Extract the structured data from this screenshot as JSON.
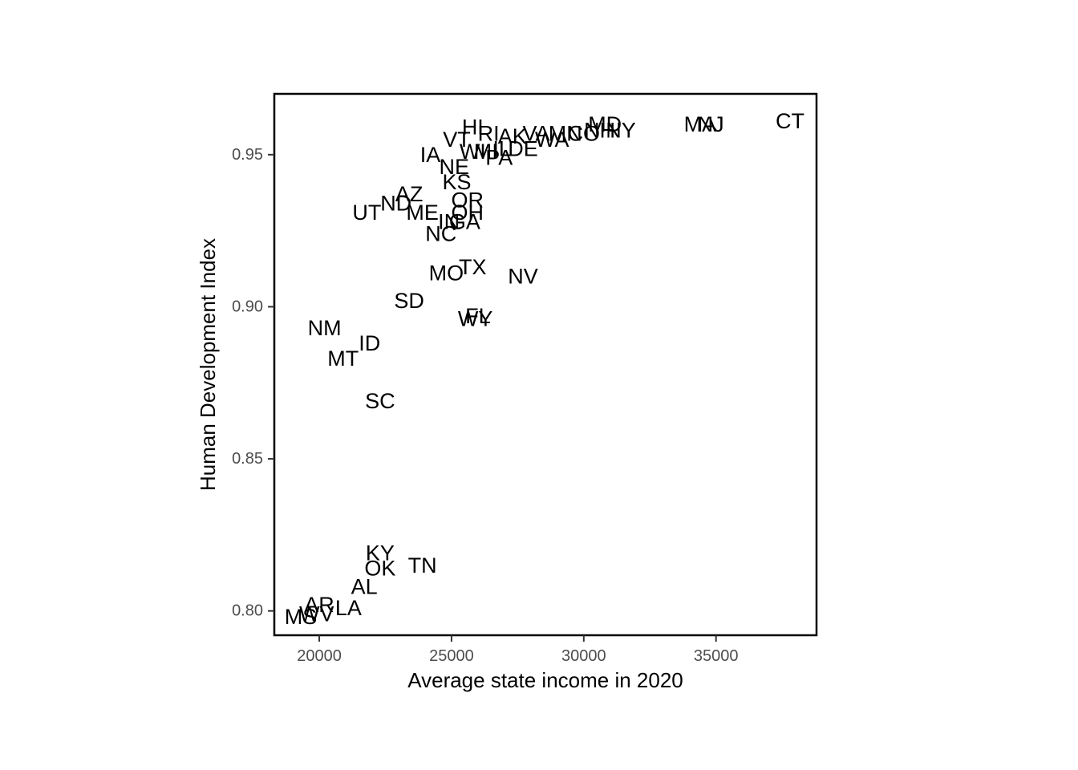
{
  "chart_data": {
    "type": "scatter",
    "title": "",
    "xlabel": "Average state income in 2020",
    "ylabel": "Human Development Index",
    "xlim": [
      18300,
      38800
    ],
    "ylim": [
      0.792,
      0.97
    ],
    "xticks": [
      20000,
      25000,
      30000,
      35000
    ],
    "xtick_labels": [
      "20000",
      "25000",
      "30000",
      "35000"
    ],
    "yticks": [
      0.8,
      0.85,
      0.9,
      0.95
    ],
    "ytick_labels": [
      "0.80",
      "0.85",
      "0.90",
      "0.95"
    ],
    "grid": false,
    "points": [
      {
        "label": "CT",
        "x": 37800,
        "y": 0.961
      },
      {
        "label": "MA",
        "x": 34400,
        "y": 0.96
      },
      {
        "label": "NJ",
        "x": 34800,
        "y": 0.96
      },
      {
        "label": "MD",
        "x": 30800,
        "y": 0.96
      },
      {
        "label": "NY",
        "x": 31400,
        "y": 0.958
      },
      {
        "label": "NH",
        "x": 30600,
        "y": 0.958
      },
      {
        "label": "CO",
        "x": 30000,
        "y": 0.957
      },
      {
        "label": "MN",
        "x": 29300,
        "y": 0.957
      },
      {
        "label": "VA",
        "x": 28200,
        "y": 0.957
      },
      {
        "label": "WA",
        "x": 28800,
        "y": 0.955
      },
      {
        "label": "AK",
        "x": 27300,
        "y": 0.956
      },
      {
        "label": "DE",
        "x": 27700,
        "y": 0.952
      },
      {
        "label": "IL",
        "x": 26900,
        "y": 0.952
      },
      {
        "label": "PA",
        "x": 26800,
        "y": 0.949
      },
      {
        "label": "HI",
        "x": 25800,
        "y": 0.959
      },
      {
        "label": "RI",
        "x": 26400,
        "y": 0.957
      },
      {
        "label": "VT",
        "x": 25200,
        "y": 0.955
      },
      {
        "label": "WI",
        "x": 25800,
        "y": 0.951
      },
      {
        "label": "MI",
        "x": 26300,
        "y": 0.951
      },
      {
        "label": "IA",
        "x": 24200,
        "y": 0.95
      },
      {
        "label": "NE",
        "x": 25100,
        "y": 0.946
      },
      {
        "label": "KS",
        "x": 25200,
        "y": 0.941
      },
      {
        "label": "AZ",
        "x": 23400,
        "y": 0.937
      },
      {
        "label": "ND",
        "x": 22900,
        "y": 0.934
      },
      {
        "label": "OR",
        "x": 25600,
        "y": 0.935
      },
      {
        "label": "OH",
        "x": 25600,
        "y": 0.931
      },
      {
        "label": "UT",
        "x": 21800,
        "y": 0.931
      },
      {
        "label": "ME",
        "x": 23900,
        "y": 0.931
      },
      {
        "label": "IN",
        "x": 24900,
        "y": 0.928
      },
      {
        "label": "GA",
        "x": 25500,
        "y": 0.928
      },
      {
        "label": "NC",
        "x": 24600,
        "y": 0.924
      },
      {
        "label": "TX",
        "x": 25800,
        "y": 0.913
      },
      {
        "label": "MO",
        "x": 24800,
        "y": 0.911
      },
      {
        "label": "NV",
        "x": 27700,
        "y": 0.91
      },
      {
        "label": "SD",
        "x": 23400,
        "y": 0.902
      },
      {
        "label": "FL",
        "x": 26000,
        "y": 0.897
      },
      {
        "label": "WY",
        "x": 25900,
        "y": 0.896
      },
      {
        "label": "NM",
        "x": 20200,
        "y": 0.893
      },
      {
        "label": "ID",
        "x": 21900,
        "y": 0.888
      },
      {
        "label": "MT",
        "x": 20900,
        "y": 0.883
      },
      {
        "label": "SC",
        "x": 22300,
        "y": 0.869
      },
      {
        "label": "KY",
        "x": 22300,
        "y": 0.819
      },
      {
        "label": "OK",
        "x": 22300,
        "y": 0.814
      },
      {
        "label": "TN",
        "x": 23900,
        "y": 0.815
      },
      {
        "label": "AL",
        "x": 21700,
        "y": 0.808
      },
      {
        "label": "AR",
        "x": 20000,
        "y": 0.802
      },
      {
        "label": "WV",
        "x": 19900,
        "y": 0.799
      },
      {
        "label": "LA",
        "x": 21100,
        "y": 0.801
      },
      {
        "label": "MS",
        "x": 19300,
        "y": 0.798
      }
    ]
  }
}
